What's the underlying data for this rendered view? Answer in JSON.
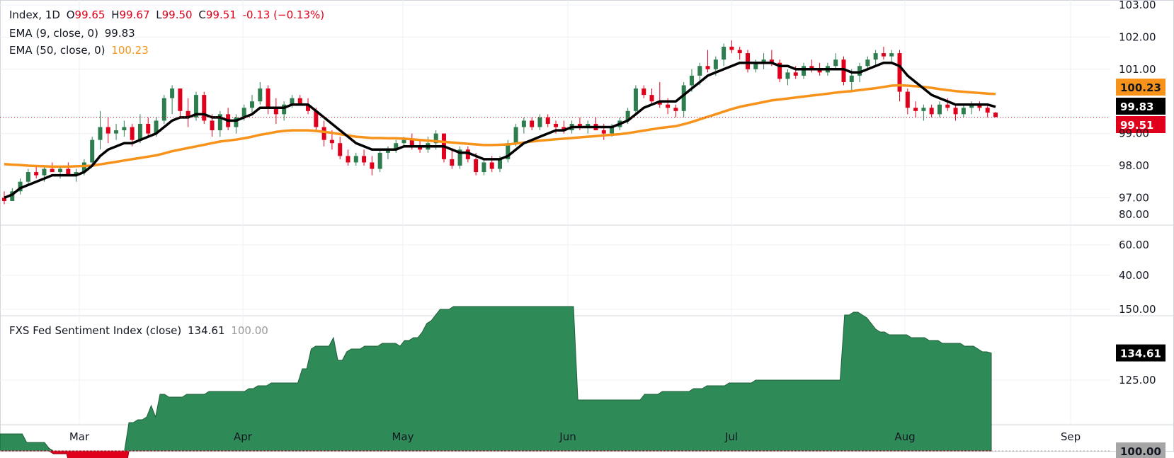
{
  "header": {
    "symbol": "Index, 1D",
    "open_label": "O",
    "open": "99.65",
    "high_label": "H",
    "high": "99.67",
    "low_label": "L",
    "low": "99.50",
    "close_label": "C",
    "close": "99.51",
    "change": "-0.13 (−0.13%)",
    "ema9_label": "EMA (9, close, 0)",
    "ema9_value": "99.83",
    "ema50_label": "EMA (50, close, 0)",
    "ema50_value": "100.23",
    "sentiment_label": "FXS Fed Sentiment Index (close)",
    "sentiment_value": "134.61",
    "sentiment_base": "100.00"
  },
  "colors": {
    "up": "#2e7d4f",
    "down": "#e0001b",
    "ema9": "#000000",
    "ema50": "#f7931a",
    "area_pos": "#2e8b57",
    "area_neg": "#e0001b",
    "grid": "#eef0f3"
  },
  "chart_data": [
    {
      "type": "candlestick",
      "yaxis_ticks": [
        "103.00",
        "102.00",
        "101.00",
        "100.23",
        "99.83",
        "99.51",
        "99.00",
        "98.00",
        "97.00"
      ],
      "ylim": [
        97.0,
        103.0
      ],
      "x_labels": [
        "Mar",
        "Apr",
        "May",
        "Jun",
        "Jul",
        "Aug",
        "Sep"
      ],
      "last_price": 99.51,
      "ohlc": [
        [
          97.0,
          97.2,
          96.8,
          96.9
        ],
        [
          96.9,
          97.3,
          96.9,
          97.2
        ],
        [
          97.2,
          97.6,
          97.1,
          97.5
        ],
        [
          97.5,
          97.9,
          97.4,
          97.8
        ],
        [
          97.8,
          98.0,
          97.6,
          97.7
        ],
        [
          97.7,
          98.0,
          97.5,
          97.9
        ],
        [
          97.9,
          98.1,
          97.8,
          97.8
        ],
        [
          97.8,
          98.0,
          97.6,
          97.9
        ],
        [
          97.9,
          98.1,
          97.7,
          97.7
        ],
        [
          97.7,
          97.9,
          97.5,
          97.8
        ],
        [
          97.8,
          98.2,
          97.7,
          98.1
        ],
        [
          98.1,
          98.9,
          98.0,
          98.8
        ],
        [
          98.8,
          99.7,
          98.5,
          99.2
        ],
        [
          99.2,
          99.5,
          98.7,
          99.0
        ],
        [
          99.0,
          99.3,
          98.8,
          99.1
        ],
        [
          99.1,
          99.4,
          98.9,
          99.2
        ],
        [
          99.2,
          99.3,
          98.6,
          98.8
        ],
        [
          98.8,
          99.6,
          98.7,
          99.3
        ],
        [
          99.3,
          99.5,
          98.9,
          99.0
        ],
        [
          99.0,
          99.5,
          98.9,
          99.4
        ],
        [
          99.4,
          100.2,
          99.3,
          100.1
        ],
        [
          100.1,
          100.5,
          99.6,
          100.4
        ],
        [
          100.4,
          100.4,
          99.5,
          99.7
        ],
        [
          99.7,
          100.1,
          99.2,
          99.5
        ],
        [
          99.5,
          100.3,
          99.4,
          100.2
        ],
        [
          100.2,
          100.3,
          99.3,
          99.4
        ],
        [
          99.4,
          99.6,
          98.9,
          99.1
        ],
        [
          99.1,
          99.7,
          98.9,
          99.6
        ],
        [
          99.6,
          99.8,
          99.1,
          99.2
        ],
        [
          99.2,
          99.6,
          99.0,
          99.5
        ],
        [
          99.5,
          99.9,
          99.4,
          99.8
        ],
        [
          99.8,
          100.2,
          99.6,
          100.0
        ],
        [
          100.0,
          100.6,
          99.9,
          100.4
        ],
        [
          100.4,
          100.5,
          99.6,
          99.8
        ],
        [
          99.8,
          100.1,
          99.3,
          99.6
        ],
        [
          99.6,
          100.0,
          99.4,
          99.9
        ],
        [
          99.9,
          100.2,
          99.8,
          100.1
        ],
        [
          100.1,
          100.2,
          99.9,
          99.9
        ],
        [
          99.9,
          100.1,
          99.6,
          99.7
        ],
        [
          99.7,
          99.8,
          99.1,
          99.2
        ],
        [
          99.2,
          99.4,
          98.6,
          98.8
        ],
        [
          98.8,
          99.1,
          98.5,
          98.7
        ],
        [
          98.7,
          98.9,
          98.2,
          98.3
        ],
        [
          98.3,
          98.5,
          98.0,
          98.1
        ],
        [
          98.1,
          98.4,
          98.0,
          98.3
        ],
        [
          98.3,
          98.5,
          98.0,
          98.1
        ],
        [
          98.1,
          98.3,
          97.7,
          97.9
        ],
        [
          97.9,
          98.5,
          97.8,
          98.4
        ],
        [
          98.4,
          98.6,
          98.2,
          98.5
        ],
        [
          98.5,
          98.8,
          98.4,
          98.7
        ],
        [
          98.7,
          98.9,
          98.6,
          98.8
        ],
        [
          98.8,
          99.0,
          98.5,
          98.6
        ],
        [
          98.6,
          98.8,
          98.4,
          98.5
        ],
        [
          98.5,
          98.9,
          98.4,
          98.7
        ],
        [
          98.7,
          99.1,
          98.5,
          99.0
        ],
        [
          99.0,
          99.0,
          98.1,
          98.2
        ],
        [
          98.2,
          98.5,
          97.9,
          98.0
        ],
        [
          98.0,
          98.6,
          97.9,
          98.5
        ],
        [
          98.5,
          98.6,
          98.1,
          98.2
        ],
        [
          98.2,
          98.4,
          97.7,
          97.8
        ],
        [
          97.8,
          98.2,
          97.7,
          98.1
        ],
        [
          98.1,
          98.3,
          97.8,
          97.9
        ],
        [
          97.9,
          98.3,
          97.8,
          98.2
        ],
        [
          98.2,
          98.8,
          98.1,
          98.7
        ],
        [
          98.7,
          99.3,
          98.6,
          99.2
        ],
        [
          99.2,
          99.5,
          99.0,
          99.4
        ],
        [
          99.4,
          99.5,
          99.1,
          99.2
        ],
        [
          99.2,
          99.6,
          99.1,
          99.5
        ],
        [
          99.5,
          99.6,
          99.2,
          99.3
        ],
        [
          99.3,
          99.4,
          99.0,
          99.2
        ],
        [
          99.2,
          99.4,
          99.0,
          99.1
        ],
        [
          99.1,
          99.4,
          99.0,
          99.3
        ],
        [
          99.3,
          99.5,
          99.1,
          99.2
        ],
        [
          99.2,
          99.4,
          99.0,
          99.3
        ],
        [
          99.3,
          99.5,
          99.1,
          99.1
        ],
        [
          99.1,
          99.3,
          98.8,
          99.0
        ],
        [
          99.0,
          99.3,
          98.9,
          99.2
        ],
        [
          99.2,
          99.5,
          99.1,
          99.4
        ],
        [
          99.4,
          99.8,
          99.3,
          99.7
        ],
        [
          99.7,
          100.5,
          99.6,
          100.4
        ],
        [
          100.4,
          100.5,
          100.1,
          100.2
        ],
        [
          100.2,
          100.4,
          99.9,
          100.0
        ],
        [
          100.0,
          100.6,
          99.8,
          99.9
        ],
        [
          99.9,
          100.1,
          99.6,
          99.8
        ],
        [
          99.8,
          99.9,
          99.5,
          99.7
        ],
        [
          99.7,
          100.6,
          99.5,
          100.5
        ],
        [
          100.5,
          101.0,
          100.3,
          100.8
        ],
        [
          100.8,
          101.2,
          100.5,
          101.1
        ],
        [
          101.1,
          101.6,
          100.9,
          101.0
        ],
        [
          101.0,
          101.4,
          100.8,
          101.3
        ],
        [
          101.3,
          101.8,
          101.1,
          101.7
        ],
        [
          101.7,
          101.9,
          101.5,
          101.6
        ],
        [
          101.6,
          101.7,
          101.3,
          101.5
        ],
        [
          101.5,
          101.6,
          100.9,
          101.0
        ],
        [
          101.0,
          101.3,
          100.9,
          101.2
        ],
        [
          101.2,
          101.5,
          101.0,
          101.3
        ],
        [
          101.3,
          101.6,
          101.1,
          101.2
        ],
        [
          101.2,
          101.3,
          100.6,
          100.7
        ],
        [
          100.7,
          101.0,
          100.5,
          100.9
        ],
        [
          100.9,
          101.1,
          100.7,
          100.8
        ],
        [
          100.8,
          101.2,
          100.7,
          101.1
        ],
        [
          101.1,
          101.3,
          100.9,
          101.0
        ],
        [
          101.0,
          101.2,
          100.8,
          100.9
        ],
        [
          100.9,
          101.2,
          100.8,
          101.1
        ],
        [
          101.1,
          101.5,
          101.0,
          101.3
        ],
        [
          101.3,
          101.4,
          100.5,
          100.6
        ],
        [
          100.6,
          101.0,
          100.3,
          100.8
        ],
        [
          100.8,
          101.2,
          100.6,
          101.1
        ],
        [
          101.1,
          101.4,
          101.0,
          101.3
        ],
        [
          101.3,
          101.6,
          101.1,
          101.5
        ],
        [
          101.5,
          101.7,
          101.3,
          101.4
        ],
        [
          101.4,
          101.6,
          101.2,
          101.5
        ],
        [
          101.5,
          101.6,
          100.0,
          100.3
        ],
        [
          100.3,
          100.4,
          99.6,
          99.8
        ],
        [
          99.8,
          100.0,
          99.5,
          99.7
        ],
        [
          99.7,
          99.9,
          99.4,
          99.8
        ],
        [
          99.8,
          99.9,
          99.5,
          99.6
        ],
        [
          99.6,
          100.0,
          99.5,
          99.9
        ],
        [
          99.9,
          100.1,
          99.7,
          99.8
        ],
        [
          99.8,
          99.9,
          99.4,
          99.6
        ],
        [
          99.6,
          99.9,
          99.5,
          99.8
        ],
        [
          99.8,
          100.0,
          99.6,
          99.9
        ],
        [
          99.9,
          100.0,
          99.7,
          99.8
        ],
        [
          99.8,
          99.9,
          99.5,
          99.65
        ],
        [
          99.65,
          99.67,
          99.5,
          99.51
        ]
      ],
      "ema9": [
        97.0,
        97.1,
        97.3,
        97.4,
        97.5,
        97.6,
        97.7,
        97.7,
        97.7,
        97.7,
        97.8,
        98.0,
        98.3,
        98.5,
        98.6,
        98.7,
        98.7,
        98.8,
        98.9,
        99.0,
        99.2,
        99.4,
        99.5,
        99.5,
        99.6,
        99.6,
        99.5,
        99.5,
        99.4,
        99.4,
        99.5,
        99.6,
        99.8,
        99.8,
        99.8,
        99.8,
        99.9,
        99.9,
        99.9,
        99.7,
        99.5,
        99.3,
        99.1,
        98.9,
        98.7,
        98.6,
        98.5,
        98.5,
        98.5,
        98.5,
        98.6,
        98.6,
        98.6,
        98.6,
        98.6,
        98.6,
        98.5,
        98.4,
        98.4,
        98.3,
        98.2,
        98.2,
        98.2,
        98.3,
        98.5,
        98.7,
        98.8,
        98.9,
        99.0,
        99.1,
        99.1,
        99.2,
        99.2,
        99.2,
        99.2,
        99.2,
        99.2,
        99.3,
        99.4,
        99.6,
        99.8,
        99.9,
        100.0,
        100.0,
        100.0,
        100.2,
        100.4,
        100.6,
        100.8,
        100.9,
        101.0,
        101.1,
        101.2,
        101.2,
        101.2,
        101.2,
        101.2,
        101.1,
        101.1,
        101.0,
        101.0,
        101.0,
        101.0,
        101.0,
        101.0,
        101.0,
        100.9,
        100.9,
        101.0,
        101.1,
        101.2,
        101.2,
        101.1,
        100.8,
        100.6,
        100.4,
        100.2,
        100.1,
        100.0,
        99.9,
        99.9,
        99.9,
        99.9,
        99.9,
        99.83
      ],
      "ema50": [
        98.05,
        98.03,
        98.02,
        98.0,
        97.99,
        97.98,
        97.97,
        97.97,
        97.97,
        97.98,
        97.99,
        98.0,
        98.04,
        98.08,
        98.12,
        98.16,
        98.2,
        98.24,
        98.28,
        98.32,
        98.38,
        98.45,
        98.5,
        98.55,
        98.6,
        98.65,
        98.7,
        98.75,
        98.78,
        98.81,
        98.85,
        98.9,
        98.96,
        99.0,
        99.05,
        99.08,
        99.1,
        99.1,
        99.1,
        99.08,
        99.05,
        99.02,
        98.98,
        98.94,
        98.9,
        98.88,
        98.86,
        98.86,
        98.85,
        98.85,
        98.84,
        98.82,
        98.8,
        98.78,
        98.76,
        98.74,
        98.72,
        98.7,
        98.68,
        98.66,
        98.64,
        98.64,
        98.65,
        98.66,
        98.69,
        98.72,
        98.75,
        98.78,
        98.8,
        98.82,
        98.84,
        98.86,
        98.88,
        98.9,
        98.92,
        98.94,
        98.96,
        98.98,
        99.01,
        99.05,
        99.09,
        99.13,
        99.17,
        99.2,
        99.23,
        99.29,
        99.36,
        99.44,
        99.52,
        99.6,
        99.68,
        99.76,
        99.83,
        99.88,
        99.93,
        99.98,
        100.03,
        100.06,
        100.09,
        100.12,
        100.15,
        100.18,
        100.21,
        100.24,
        100.27,
        100.3,
        100.32,
        100.35,
        100.38,
        100.41,
        100.45,
        100.49,
        100.5,
        100.49,
        100.47,
        100.45,
        100.42,
        100.38,
        100.35,
        100.32,
        100.3,
        100.28,
        100.26,
        100.24,
        100.23
      ]
    },
    {
      "type": "area",
      "name": "FXS Fed Sentiment Index (close)",
      "baseline": 100.0,
      "yaxis_ticks": [
        "150.00",
        "125.00",
        "100.00"
      ],
      "last_value": 134.61,
      "values": [
        106,
        106,
        106,
        106,
        106,
        106,
        103,
        103,
        103,
        103,
        103,
        101,
        99,
        99,
        99,
        99,
        92,
        91,
        91,
        91,
        91,
        91,
        91,
        91,
        91,
        91,
        91,
        91,
        91,
        110,
        110,
        111,
        111,
        112,
        116,
        112,
        120,
        120,
        119,
        119,
        119,
        119,
        120,
        120,
        120,
        120,
        120,
        121,
        121,
        121,
        121,
        121,
        121,
        121,
        121,
        121,
        122,
        122,
        123,
        123,
        123,
        124,
        124,
        124,
        124,
        124,
        124,
        124,
        129,
        129,
        136,
        137,
        137,
        137,
        137,
        140,
        132,
        132,
        135,
        136,
        136,
        136,
        137,
        137,
        137,
        137,
        138,
        138,
        138,
        138,
        137,
        139,
        139,
        140,
        140,
        142,
        145,
        146,
        148,
        150,
        150,
        150,
        151,
        151,
        151,
        151,
        151,
        151,
        151,
        151,
        151,
        151,
        151,
        151,
        151,
        151,
        151,
        151,
        151,
        151,
        151,
        151,
        151,
        151,
        151,
        151,
        151,
        151,
        151,
        151,
        118,
        118,
        118,
        118,
        118,
        118,
        118,
        118,
        118,
        118,
        118,
        118,
        118,
        118,
        118,
        120,
        120,
        120,
        120,
        121,
        121,
        121,
        121,
        121,
        121,
        121,
        122,
        122,
        122,
        123,
        123,
        123,
        123,
        123,
        124,
        124,
        124,
        124,
        124,
        124,
        125,
        125,
        125,
        125,
        125,
        125,
        125,
        125,
        125,
        125,
        125,
        125,
        125,
        125,
        125,
        125,
        125,
        125,
        125,
        125,
        148,
        148,
        149,
        149,
        148,
        147,
        145,
        143,
        142,
        142,
        141,
        141,
        141,
        141,
        141,
        140,
        140,
        140,
        140,
        139,
        139,
        139,
        138,
        138,
        138,
        138,
        138,
        137,
        137,
        137,
        136,
        135,
        135,
        134.61
      ]
    },
    {
      "type": "line",
      "yaxis_ticks": [
        "80.00",
        "60.00",
        "40.00"
      ]
    }
  ]
}
